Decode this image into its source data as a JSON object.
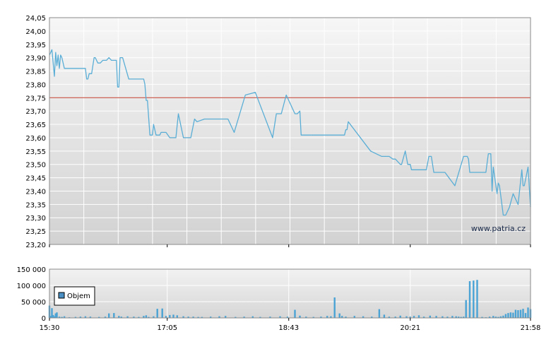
{
  "chart_data": [
    {
      "type": "line",
      "title": "",
      "xlabel": "",
      "ylabel": "",
      "ylim": [
        23.2,
        24.05
      ],
      "y_ticks": [
        "24,05",
        "24,00",
        "23,95",
        "23,90",
        "23,85",
        "23,80",
        "23,75",
        "23,70",
        "23,65",
        "23,60",
        "23,55",
        "23,50",
        "23,45",
        "23,40",
        "23,35",
        "23,30",
        "23,25",
        "23,20"
      ],
      "x_range": [
        "15:30",
        "21:58"
      ],
      "reference_line": {
        "value": 23.75,
        "color": "#c0392b"
      },
      "watermark": "www.patria.cz",
      "grid": true,
      "colors": {
        "line": "#5aaed6",
        "grid": "#ffffff",
        "plot_bg_top": "#f6f6f6",
        "plot_bg_bottom": "#d2d2d2"
      },
      "series": [
        {
          "x": [
            "15:30",
            "15:31",
            "15:32",
            "15:34",
            "15:35",
            "15:36",
            "15:37",
            "15:38",
            "15:39",
            "15:40",
            "15:42",
            "15:43",
            "15:44",
            "15:46",
            "15:47",
            "15:48",
            "15:53",
            "15:59",
            "16:00",
            "16:01",
            "16:02",
            "16:04",
            "16:06",
            "16:07",
            "16:09",
            "16:11",
            "16:13",
            "16:15",
            "16:16",
            "16:18",
            "16:20",
            "16:24",
            "16:25",
            "16:26",
            "16:27",
            "16:28",
            "16:29",
            "16:34",
            "16:46",
            "16:47",
            "16:48",
            "16:49",
            "16:51",
            "16:53",
            "16:54",
            "16:56",
            "16:57",
            "16:59",
            "17:00",
            "17:04",
            "17:07",
            "17:12",
            "17:14",
            "17:18",
            "17:24",
            "17:27",
            "17:29",
            "17:35",
            "17:54",
            "17:59",
            "18:08",
            "18:16",
            "18:30",
            "18:33",
            "18:37",
            "18:41",
            "18:48",
            "18:50",
            "18:52",
            "18:53",
            "18:59",
            "18:61"
          ],
          "values": [
            23.91,
            23.92,
            23.93,
            23.83,
            23.92,
            23.87,
            23.91,
            23.86,
            23.91,
            23.9,
            23.86,
            23.86,
            23.86,
            23.86,
            23.86,
            23.86,
            23.86,
            23.86,
            23.82,
            23.82,
            23.84,
            23.84,
            23.9,
            23.9,
            23.88,
            23.88,
            23.89,
            23.89,
            23.89,
            23.9,
            23.89,
            23.89,
            23.79,
            23.79,
            23.9,
            23.9,
            23.9,
            23.82,
            23.82,
            23.8,
            23.74,
            23.74,
            23.61,
            23.61,
            23.65,
            23.61,
            23.61,
            23.61,
            23.62,
            23.62,
            23.6,
            23.6,
            23.69,
            23.6,
            23.6,
            23.67,
            23.66,
            23.67,
            23.67,
            23.62,
            23.76,
            23.77,
            23.6,
            23.69,
            23.69,
            23.76,
            23.69,
            23.69,
            23.7,
            23.61,
            23.61,
            23.61
          ]
        },
        {
          "x": [
            "19:25",
            "19:28",
            "19:29",
            "19:30",
            "19:31",
            "19:49",
            "19:58",
            "20:01",
            "20:04",
            "20:07",
            "20:09",
            "20:11",
            "20:13",
            "20:14",
            "20:17",
            "20:19",
            "20:21",
            "20:22",
            "20:24",
            "20:34",
            "20:36",
            "20:38",
            "20:40",
            "20:45",
            "20:49",
            "20:57",
            "21:04",
            "21:05",
            "21:06",
            "21:07",
            "21:08",
            "21:09",
            "21:10",
            "21:11",
            "21:13",
            "21:16",
            "21:22",
            "21:24",
            "21:26",
            "21:27",
            "21:28",
            "21:31",
            "21:32",
            "21:33",
            "21:36",
            "21:37",
            "21:38",
            "21:41",
            "21:44",
            "21:48",
            "21:51",
            "21:52",
            "21:53",
            "21:56",
            "21:58"
          ],
          "values": [
            23.61,
            23.61,
            23.63,
            23.63,
            23.66,
            23.55,
            23.53,
            23.53,
            23.53,
            23.52,
            23.52,
            23.51,
            23.5,
            23.5,
            23.55,
            23.5,
            23.5,
            23.48,
            23.48,
            23.48,
            23.53,
            23.53,
            23.47,
            23.47,
            23.47,
            23.42,
            23.53,
            23.53,
            23.53,
            23.53,
            23.52,
            23.47,
            23.47,
            23.47,
            23.47,
            23.47,
            23.47,
            23.54,
            23.54,
            23.4,
            23.49,
            23.39,
            23.43,
            23.42,
            23.31,
            23.31,
            23.31,
            23.34,
            23.39,
            23.35,
            23.48,
            23.42,
            23.42,
            23.49,
            23.34
          ]
        }
      ]
    },
    {
      "type": "bar",
      "title": "",
      "xlabel": "",
      "ylabel": "",
      "ylim": [
        0,
        150000
      ],
      "y_ticks": [
        "150 000",
        "100 000",
        "50 000",
        "0"
      ],
      "x_ticks": [
        "15:30",
        "17:05",
        "18:43",
        "20:21",
        "21:58"
      ],
      "legend": {
        "label": "Objem",
        "placement": "left"
      },
      "colors": {
        "bar": "#4aa3d4",
        "legend_swatch": "#4a90c4"
      },
      "series": [
        {
          "name": "Objem",
          "x": [
            "15:30",
            "15:31",
            "15:32",
            "15:33",
            "15:34",
            "15:35",
            "15:36",
            "15:38",
            "15:40",
            "15:42",
            "15:46",
            "15:51",
            "15:55",
            "15:59",
            "16:03",
            "16:10",
            "16:15",
            "16:18",
            "16:22",
            "16:26",
            "16:28",
            "16:33",
            "16:38",
            "16:42",
            "16:46",
            "16:48",
            "16:50",
            "16:54",
            "16:57",
            "17:01",
            "17:04",
            "17:07",
            "17:10",
            "17:13",
            "17:18",
            "17:22",
            "17:26",
            "17:30",
            "17:33",
            "17:40",
            "17:47",
            "17:52",
            "18:00",
            "18:07",
            "18:14",
            "18:20",
            "18:28",
            "18:36",
            "18:42",
            "18:48",
            "18:52",
            "18:57",
            "19:03",
            "19:09",
            "19:14",
            "19:17",
            "19:20",
            "19:24",
            "19:26",
            "19:29",
            "19:36",
            "19:43",
            "19:50",
            "19:56",
            "20:00",
            "20:04",
            "20:09",
            "20:13",
            "20:18",
            "20:21",
            "20:24",
            "20:28",
            "20:32",
            "20:37",
            "20:42",
            "20:47",
            "20:51",
            "20:55",
            "20:58",
            "21:00",
            "21:02",
            "21:04",
            "21:06",
            "21:09",
            "21:12",
            "21:15",
            "21:19",
            "21:22",
            "21:25",
            "21:28",
            "21:30",
            "21:32",
            "21:34",
            "21:36",
            "21:38",
            "21:40",
            "21:42",
            "21:44",
            "21:46",
            "21:48",
            "21:50",
            "21:52",
            "21:54",
            "21:56",
            "21:58"
          ],
          "values": [
            38000,
            6000,
            30000,
            9000,
            5000,
            14000,
            17000,
            4000,
            3000,
            5000,
            2000,
            3000,
            4000,
            5000,
            4000,
            3000,
            4000,
            14000,
            15000,
            6000,
            4000,
            5000,
            4000,
            3000,
            6000,
            8000,
            3000,
            5000,
            28000,
            29000,
            6000,
            9000,
            10000,
            8000,
            5000,
            4000,
            4000,
            3000,
            3000,
            4000,
            5000,
            6000,
            3000,
            4000,
            5000,
            3000,
            4000,
            5000,
            4000,
            25000,
            7000,
            4000,
            3000,
            4000,
            6000,
            5000,
            63000,
            14000,
            6000,
            4000,
            6000,
            5000,
            4000,
            27000,
            10000,
            4000,
            4000,
            7000,
            5000,
            4000,
            6000,
            8000,
            4000,
            7000,
            6000,
            5000,
            4000,
            6000,
            5000,
            4000,
            3000,
            4000,
            55000,
            113000,
            115000,
            117000,
            3000,
            2000,
            4000,
            6000,
            4000,
            3000,
            5000,
            7000,
            12000,
            15000,
            17000,
            16000,
            25000,
            24000,
            25000,
            28000,
            15000,
            32000,
            27000
          ]
        }
      ]
    }
  ]
}
